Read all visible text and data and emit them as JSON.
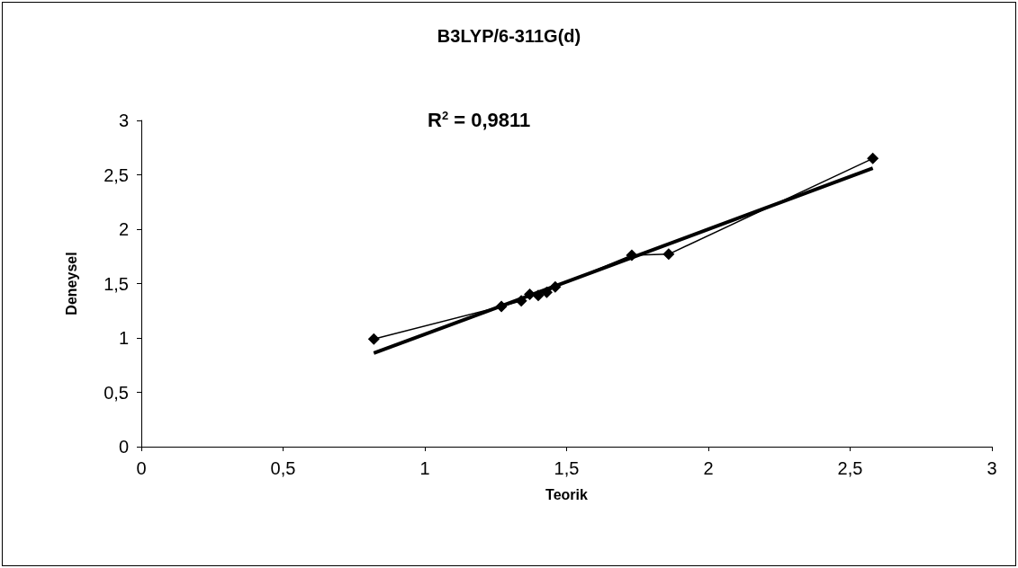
{
  "chart_data": {
    "type": "line",
    "title": "B3LYP/6-311G(d)",
    "xlabel": "Teorik",
    "ylabel": "Deneysel",
    "annotations": [
      "R$^{2}$ = 0,9811"
    ],
    "series": [
      {
        "color": "#000000",
        "marker": "diamond",
        "line_style": "solid",
        "x": [
          0.82,
          1.27,
          1.34,
          1.37,
          1.4,
          1.43,
          1.46,
          1.73,
          1.86,
          2.58
        ],
        "values": [
          0.99,
          1.29,
          1.34,
          1.4,
          1.39,
          1.42,
          1.47,
          1.76,
          1.77,
          2.65
        ]
      },
      {
        "color": "#000000",
        "marker": "none",
        "line_style": "solid",
        "x": [
          0.82,
          2.58
        ],
        "values": [
          0.86,
          2.56
        ]
      }
    ],
    "xlim": [
      0,
      3
    ],
    "xticks": [
      0,
      {
        "value": 0.5,
        "label": "0,5"
      },
      1,
      {
        "value": 1.5,
        "label": "1,5"
      },
      2,
      {
        "value": 2.5,
        "label": "2,5"
      },
      3
    ],
    "ylim": [
      0,
      3
    ],
    "yticks": [
      0,
      {
        "value": 0.5,
        "label": "0,5"
      },
      1,
      {
        "value": 1.5,
        "label": "1,5"
      },
      2,
      {
        "value": 2.5,
        "label": "2,5"
      },
      3
    ],
    "grid": false
  }
}
